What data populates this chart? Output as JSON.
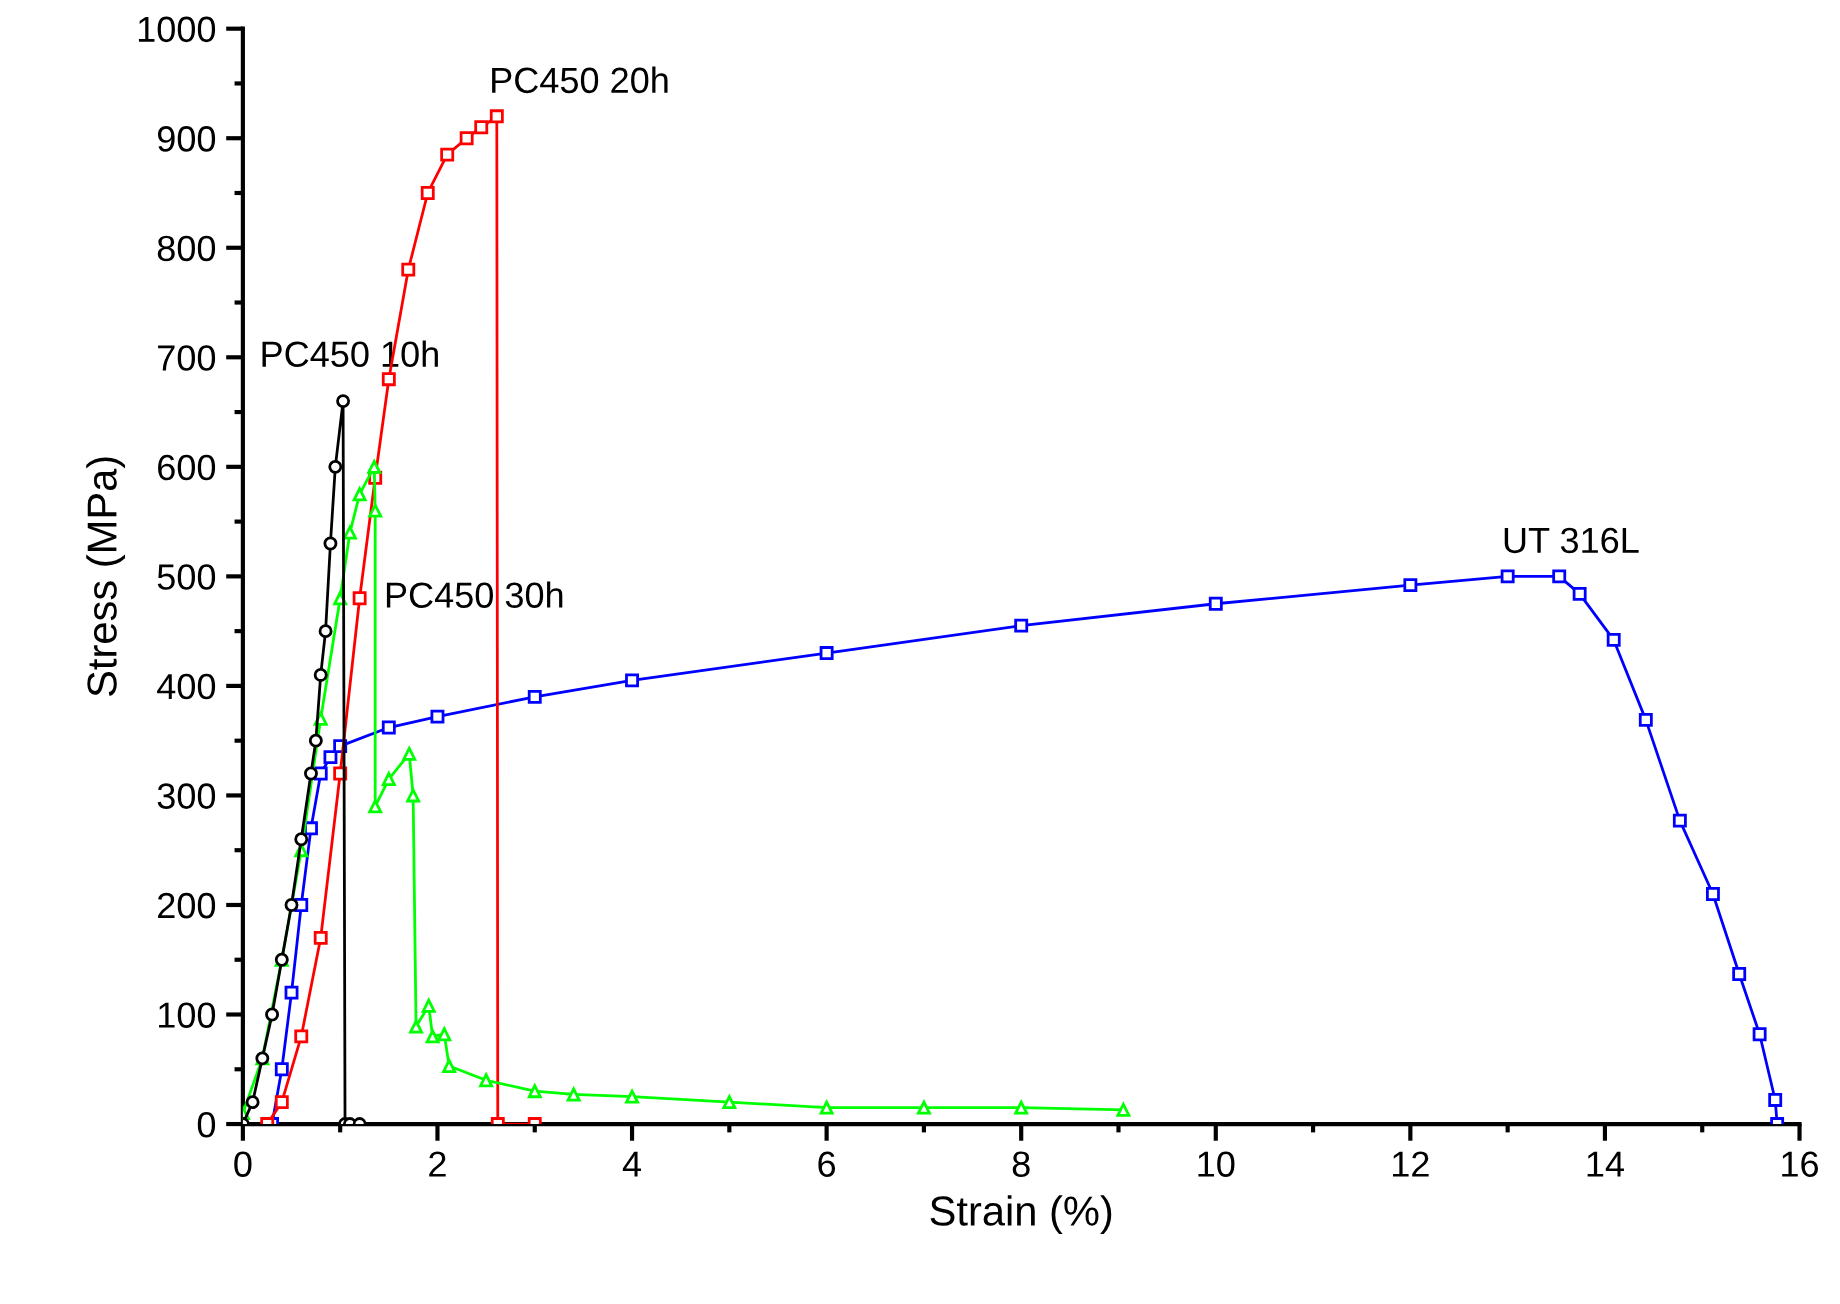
{
  "chart_data": {
    "type": "line",
    "xlabel": "Strain (%)",
    "ylabel": "Stress (MPa)",
    "xlim": [
      0,
      16
    ],
    "ylim": [
      0,
      1000
    ],
    "xticks": [
      0,
      2,
      4,
      6,
      8,
      10,
      12,
      14,
      16
    ],
    "yticks": [
      0,
      100,
      200,
      300,
      400,
      500,
      600,
      700,
      800,
      900,
      1000
    ],
    "grid": false,
    "legend": false,
    "series": [
      {
        "name": "PC450 10h",
        "color": "#000000",
        "marker": "circle",
        "x": [
          0.0,
          0.1,
          0.2,
          0.3,
          0.4,
          0.5,
          0.6,
          0.7,
          0.75,
          0.8,
          0.85,
          0.9,
          0.95,
          1.03,
          1.05,
          1.1,
          1.2
        ],
        "values": [
          0,
          20,
          60,
          100,
          150,
          200,
          260,
          320,
          350,
          410,
          450,
          530,
          600,
          660,
          0,
          0,
          0
        ]
      },
      {
        "name": "PC450 30h",
        "color": "#00ff00",
        "marker": "triangle",
        "x": [
          0.0,
          0.2,
          0.4,
          0.6,
          0.8,
          1.0,
          1.1,
          1.2,
          1.35,
          1.36,
          1.36,
          1.5,
          1.71,
          1.75,
          1.78,
          1.91,
          1.95,
          2.07,
          2.12,
          2.5,
          3.0,
          3.4,
          4.0,
          5.0,
          6.0,
          7.0,
          8.0,
          9.05
        ],
        "values": [
          10,
          60,
          150,
          250,
          370,
          480,
          540,
          575,
          600,
          560,
          290,
          315,
          338,
          300,
          89,
          108,
          80,
          82,
          53,
          40,
          30,
          27,
          25,
          20,
          15,
          15,
          15,
          13
        ]
      },
      {
        "name": "PC450 20h",
        "color": "#ff0000",
        "marker": "square",
        "x": [
          0.25,
          0.4,
          0.6,
          0.8,
          1.0,
          1.2,
          1.36,
          1.5,
          1.7,
          1.9,
          2.1,
          2.3,
          2.45,
          2.61,
          2.62,
          3.0
        ],
        "values": [
          0,
          20,
          80,
          170,
          320,
          480,
          590,
          680,
          780,
          850,
          885,
          900,
          910,
          920,
          0,
          0
        ]
      },
      {
        "name": "UT 316L",
        "color": "#0000ff",
        "marker": "square",
        "x": [
          0.3,
          0.4,
          0.5,
          0.6,
          0.7,
          0.8,
          0.9,
          1.0,
          1.5,
          2.0,
          3.0,
          4.0,
          6.0,
          8.0,
          10.0,
          12.0,
          13.0,
          13.53,
          13.74,
          14.09,
          14.42,
          14.77,
          15.11,
          15.38,
          15.59,
          15.75,
          15.77
        ],
        "values": [
          0,
          50,
          120,
          200,
          270,
          320,
          335,
          345,
          362,
          372,
          390,
          405,
          430,
          455,
          475,
          492,
          500,
          500,
          484,
          442,
          369,
          277,
          210,
          137,
          82,
          22,
          0
        ]
      }
    ]
  }
}
